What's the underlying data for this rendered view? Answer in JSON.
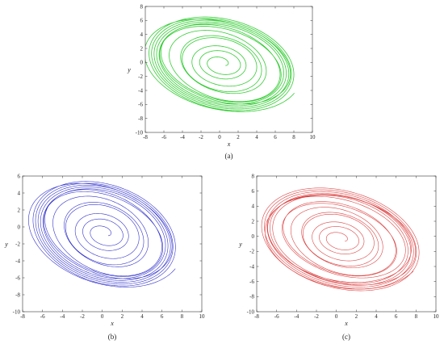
{
  "chart_data": [
    {
      "type": "line",
      "panel_label": "(a)",
      "xlabel": "x",
      "ylabel": "y",
      "xlim": [
        -8,
        10
      ],
      "ylim": [
        -10,
        8
      ],
      "xticks": [
        -8,
        -6,
        -4,
        -2,
        0,
        2,
        4,
        6,
        8,
        10
      ],
      "yticks": [
        -10,
        -8,
        -6,
        -4,
        -2,
        0,
        2,
        4,
        6,
        8
      ],
      "color": "#33cc33",
      "attractor": {
        "center": [
          0.2,
          -0.2
        ],
        "outer_radius": [
          8.2,
          6.2
        ],
        "rotation_deg": -28,
        "turns": 9,
        "inner_loops": 5
      }
    },
    {
      "type": "line",
      "panel_label": "(b)",
      "xlabel": "x",
      "ylabel": "y",
      "xlim": [
        -8,
        10
      ],
      "ylim": [
        -10,
        6
      ],
      "xticks": [
        -8,
        -6,
        -4,
        -2,
        0,
        2,
        4,
        6,
        8,
        10
      ],
      "yticks": [
        -10,
        -8,
        -6,
        -4,
        -2,
        0,
        2,
        4,
        6
      ],
      "color": "#3333cc",
      "attractor": {
        "center": [
          0.2,
          -0.8
        ],
        "outer_radius": [
          7.6,
          5.6
        ],
        "rotation_deg": -30,
        "turns": 9,
        "inner_loops": 5
      }
    },
    {
      "type": "line",
      "panel_label": "(c)",
      "xlabel": "x",
      "ylabel": "y",
      "xlim": [
        -8,
        10
      ],
      "ylim": [
        -10,
        8
      ],
      "xticks": [
        -8,
        -6,
        -4,
        -2,
        0,
        2,
        4,
        6,
        8,
        10
      ],
      "yticks": [
        -10,
        -8,
        -6,
        -4,
        -2,
        0,
        2,
        4,
        6,
        8
      ],
      "color": "#dd4444",
      "attractor": {
        "center": [
          0.4,
          -0.4
        ],
        "outer_radius": [
          8.4,
          6.2
        ],
        "rotation_deg": -30,
        "turns": 11,
        "inner_loops": 5
      }
    }
  ]
}
